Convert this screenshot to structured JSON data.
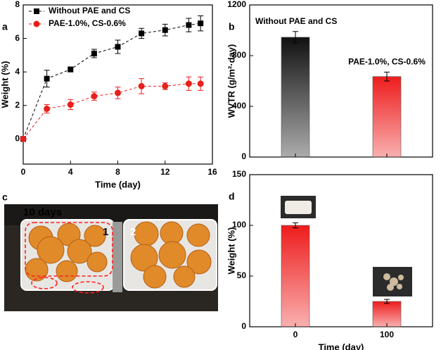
{
  "chart_data": [
    {
      "type": "line",
      "label": "a",
      "xlabel": "Time (day)",
      "ylabel": "Weight (%)",
      "x": [
        0,
        2,
        4,
        6,
        8,
        10,
        12,
        14,
        15
      ],
      "series": [
        {
          "name": "Without PAE and CS",
          "color": "#000000",
          "marker": "square",
          "values": [
            0,
            3.6,
            4.15,
            5.1,
            5.5,
            6.3,
            6.5,
            6.8,
            6.9
          ],
          "errors": [
            0.05,
            0.5,
            0.15,
            0.25,
            0.4,
            0.3,
            0.35,
            0.4,
            0.45
          ]
        },
        {
          "name": "PAE-1.0%, CS-0.6%",
          "color": "#e8201c",
          "marker": "circle",
          "values": [
            0,
            1.8,
            2.05,
            2.55,
            2.75,
            3.15,
            3.15,
            3.3,
            3.3
          ],
          "errors": [
            0.05,
            0.25,
            0.3,
            0.25,
            0.35,
            0.45,
            0.2,
            0.4,
            0.4
          ]
        }
      ],
      "xlim": [
        0,
        16
      ],
      "xticks": [
        0,
        4,
        8,
        12,
        16
      ],
      "ylim": [
        -1.5,
        8
      ],
      "yticks": [
        0,
        2,
        4,
        6,
        8
      ],
      "legend": "upper left"
    },
    {
      "type": "bar",
      "label": "b",
      "ylabel": "WVTR (g/m²·day)",
      "categories": [
        null,
        null
      ],
      "bar_labels": [
        "Without PAE and CS",
        "PAE-1.0%, CS-0.6%"
      ],
      "values": [
        945,
        635
      ],
      "errors": [
        45,
        35
      ],
      "colors": [
        "#111111",
        "#ee1c1c"
      ],
      "ylim": [
        0,
        1200
      ],
      "yticks": [
        0,
        400,
        800,
        1200
      ]
    },
    {
      "type": "photo",
      "label": "c",
      "caption": "10 days",
      "tray_labels": [
        "1",
        "2"
      ]
    },
    {
      "type": "bar",
      "label": "d",
      "xlabel": "Time (day)",
      "ylabel": "Weight (%)",
      "categories": [
        "0",
        "100"
      ],
      "values": [
        100,
        25
      ],
      "errors": [
        2.5,
        2
      ],
      "colors": [
        "#ee1c1c",
        "#ee1c1c"
      ],
      "ylim": [
        0,
        150
      ],
      "yticks": [
        0,
        50,
        100,
        150
      ]
    }
  ]
}
